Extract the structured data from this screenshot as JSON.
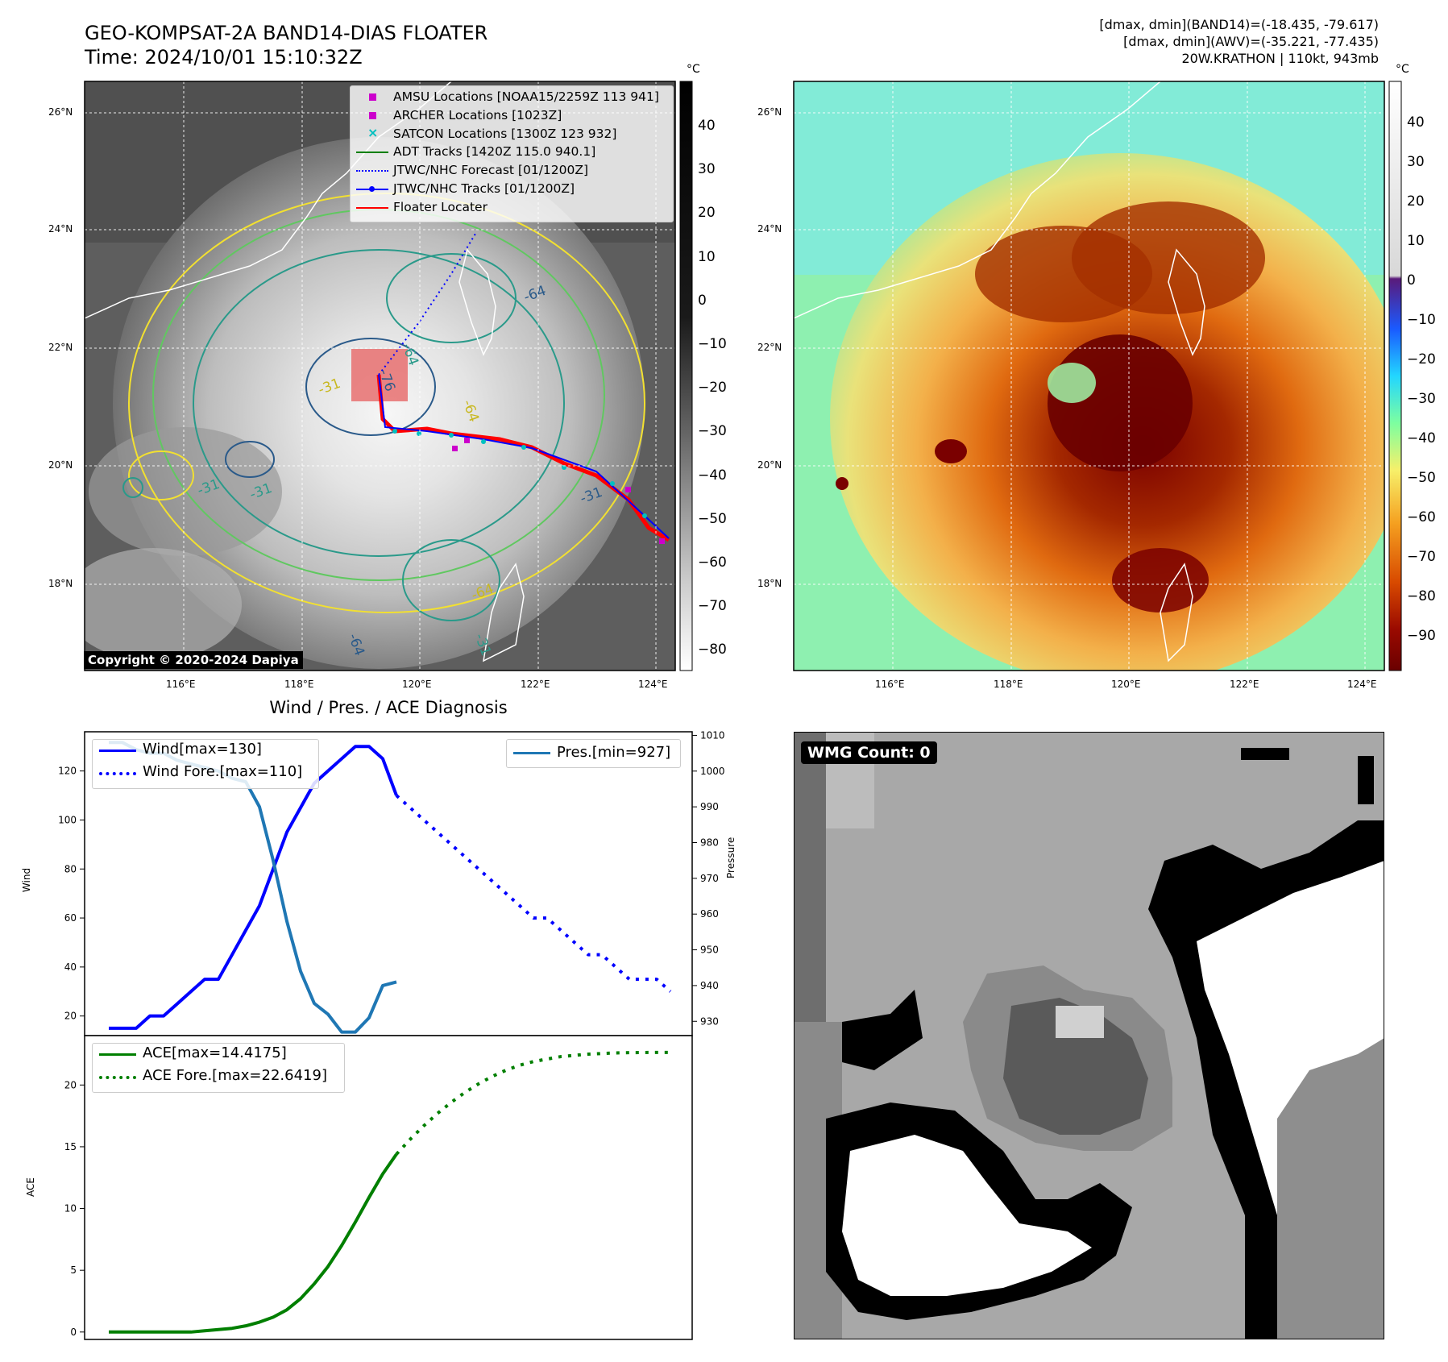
{
  "header": {
    "title_line1": "GEO-KOMPSAT-2A BAND14-DIAS FLOATER",
    "title_line2": "Time: 2024/10/01 15:10:32Z",
    "diag_line1": "[dmax, dmin](BAND14)=(-18.435, -79.617)",
    "diag_line2": "[dmax, dmin](AWV)=(-35.221, -77.435)",
    "diag_line3": "20W.KRATHON | 110kt, 943mb"
  },
  "map_left": {
    "lat_ticks": [
      "26°N",
      "24°N",
      "22°N",
      "20°N",
      "18°N"
    ],
    "lon_ticks": [
      "116°E",
      "118°E",
      "120°E",
      "122°E",
      "124°E"
    ],
    "legend": [
      {
        "label": "AMSU Locations [NOAA15/2259Z 113 941]",
        "color": "#cc00cc",
        "marker": "square"
      },
      {
        "label": "ARCHER Locations [1023Z]",
        "color": "#cc00cc",
        "marker": "square"
      },
      {
        "label": "SATCON Locations [1300Z 123 932]",
        "color": "#00c0c0",
        "marker": "x"
      },
      {
        "label": "ADT Tracks [1420Z 115.0 940.1]",
        "color": "#007f00",
        "marker": "line"
      },
      {
        "label": "JTWC/NHC Forecast [01/1200Z]",
        "color": "#0000ff",
        "marker": "dotted"
      },
      {
        "label": "JTWC/NHC Tracks [01/1200Z]",
        "color": "#0000ff",
        "marker": "line-dot"
      },
      {
        "label": "Floater Locater",
        "color": "#ff0000",
        "marker": "line"
      }
    ],
    "colorbar_unit": "°C",
    "colorbar_ticks": [
      "40",
      "30",
      "20",
      "10",
      "0",
      "−10",
      "−20",
      "−30",
      "−40",
      "−50",
      "−60",
      "−70",
      "−80"
    ],
    "contour_labels": [
      "-64",
      "-64",
      "-31",
      "-76",
      "-31",
      "-64",
      "-31",
      "-31",
      "-64",
      "-64",
      "-31"
    ],
    "copyright": "Copyright © 2020-2024 Dapiya"
  },
  "map_right": {
    "lat_ticks": [
      "26°N",
      "24°N",
      "22°N",
      "20°N",
      "18°N"
    ],
    "lon_ticks": [
      "116°E",
      "118°E",
      "120°E",
      "122°E",
      "124°E"
    ],
    "colorbar_unit": "°C",
    "colorbar_ticks": [
      "40",
      "30",
      "20",
      "10",
      "0",
      "−10",
      "−20",
      "−30",
      "−40",
      "−50",
      "−60",
      "−70",
      "−80",
      "−90"
    ]
  },
  "diagnosis": {
    "title": "Wind / Pres. / ACE Diagnosis",
    "wind_ylabel": "Wind",
    "pres_ylabel": "Pressure",
    "ace_ylabel": "ACE",
    "wind_legend": [
      "Wind[max=130]",
      "Wind Fore.[max=110]"
    ],
    "pres_legend": "Pres.[min=927]",
    "ace_legend": [
      "ACE[max=14.4175]",
      "ACE Fore.[max=22.6419]"
    ]
  },
  "wmg": {
    "label": "WMG Count: 0"
  },
  "chart_data": [
    {
      "type": "line",
      "title": "Wind / Pres. / ACE Diagnosis",
      "ylabel": "Wind",
      "ylim": [
        12,
        136
      ],
      "y_ticks": [
        20,
        40,
        60,
        80,
        100,
        120
      ],
      "series": [
        {
          "name": "Wind[max=130]",
          "color": "#0000ff",
          "style": "solid",
          "x": [
            0,
            2,
            4,
            6,
            8,
            10,
            12,
            14,
            16,
            18,
            20,
            22,
            24,
            26,
            28,
            30,
            32
          ],
          "values": [
            15,
            15,
            15,
            20,
            20,
            25,
            30,
            35,
            35,
            45,
            55,
            65,
            80,
            95,
            105,
            115,
            120
          ]
        },
        {
          "name": "Wind[max=130] peak",
          "color": "#0000ff",
          "style": "solid",
          "x": [
            32,
            34,
            36,
            38,
            40,
            42
          ],
          "values": [
            120,
            125,
            130,
            130,
            125,
            110
          ]
        },
        {
          "name": "Wind Fore.[max=110]",
          "color": "#0000ff",
          "style": "dotted",
          "x": [
            42,
            44,
            46,
            48,
            50,
            52,
            54,
            56,
            58,
            60,
            62,
            64,
            66,
            68,
            70,
            72,
            74,
            76,
            78,
            80,
            82
          ],
          "values": [
            110,
            105,
            100,
            95,
            90,
            85,
            80,
            75,
            70,
            65,
            60,
            60,
            55,
            50,
            45,
            45,
            40,
            35,
            35,
            35,
            30
          ]
        }
      ]
    },
    {
      "type": "line",
      "ylabel": "Pressure",
      "ylim": [
        926,
        1011
      ],
      "y_ticks": [
        930,
        940,
        950,
        960,
        970,
        980,
        990,
        1000,
        1010
      ],
      "series": [
        {
          "name": "Pres.[min=927]",
          "color": "#1f77b4",
          "style": "solid",
          "x": [
            0,
            2,
            4,
            6,
            8,
            10,
            12,
            14,
            16,
            18,
            20,
            22,
            24,
            26,
            28,
            30,
            32,
            34,
            36,
            38,
            40,
            42
          ],
          "values": [
            1008,
            1008,
            1006,
            1005,
            1005,
            1003,
            1002,
            1001,
            1000,
            998,
            997,
            990,
            975,
            958,
            944,
            935,
            932,
            927,
            927,
            931,
            940,
            941
          ]
        }
      ]
    },
    {
      "type": "line",
      "ylabel": "ACE",
      "ylim": [
        -0.6,
        24
      ],
      "y_ticks": [
        0,
        5,
        10,
        15,
        20
      ],
      "series": [
        {
          "name": "ACE[max=14.4175]",
          "color": "#007f00",
          "style": "solid",
          "x": [
            0,
            2,
            4,
            6,
            8,
            10,
            12,
            14,
            16,
            18,
            20,
            22,
            24,
            26,
            28,
            30,
            32,
            34,
            36,
            38,
            40,
            42
          ],
          "values": [
            0,
            0,
            0,
            0,
            0,
            0,
            0,
            0.1,
            0.2,
            0.3,
            0.5,
            0.8,
            1.2,
            1.8,
            2.7,
            3.9,
            5.3,
            7.0,
            8.9,
            10.9,
            12.8,
            14.4
          ]
        },
        {
          "name": "ACE Fore.[max=22.6419]",
          "color": "#007f00",
          "style": "dotted",
          "x": [
            42,
            44,
            46,
            48,
            50,
            52,
            54,
            56,
            58,
            60,
            62,
            64,
            66,
            68,
            70,
            72,
            74,
            76,
            78,
            80,
            82
          ],
          "values": [
            14.4,
            15.6,
            16.7,
            17.7,
            18.6,
            19.4,
            20.1,
            20.7,
            21.2,
            21.6,
            21.9,
            22.1,
            22.3,
            22.4,
            22.5,
            22.55,
            22.6,
            22.62,
            22.63,
            22.64,
            22.64
          ]
        }
      ]
    }
  ]
}
